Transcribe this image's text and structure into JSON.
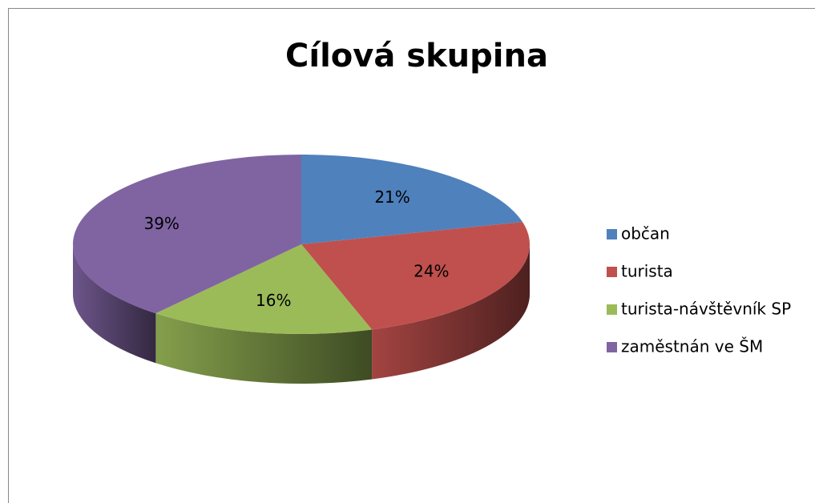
{
  "chart_data": {
    "type": "pie",
    "title": "Cílová skupina",
    "categories": [
      "občan",
      "turista",
      "turista-návštěvník SP",
      "zaměstnán ve ŠM"
    ],
    "values": [
      21,
      24,
      16,
      39
    ],
    "value_labels": [
      "21%",
      "24%",
      "16%",
      "39%"
    ],
    "colors": [
      "#4f81bd",
      "#c0504d",
      "#9bbb59",
      "#8064a2"
    ],
    "legend": "right"
  }
}
